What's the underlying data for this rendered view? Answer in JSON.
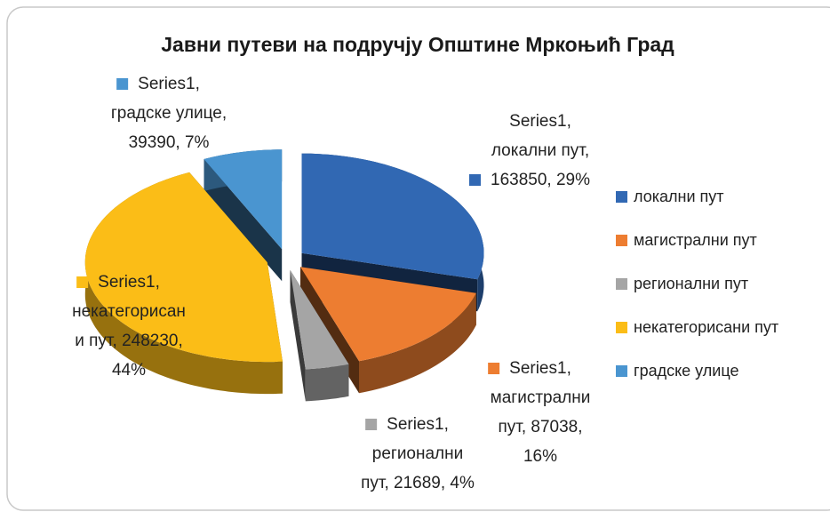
{
  "chart_data": {
    "type": "pie",
    "title": "Јавни путеви на подручју Општине Мркоњић Град",
    "categories": [
      "локални пут",
      "магистрални пут",
      "регионални пут",
      "некатегорисани пут",
      "градске улице"
    ],
    "values": [
      163850,
      87038,
      21689,
      248230,
      39390
    ],
    "colors": [
      "#3168b3",
      "#ed7d31",
      "#a5a5a5",
      "#fbbd17",
      "#4a95d0"
    ],
    "value_labels": [
      [
        "Series1,",
        "локални пут,",
        "163850, 29%"
      ],
      [
        "Series1,",
        "магистрални",
        "пут, 87038,",
        "16%"
      ],
      [
        "Series1,",
        "регионални",
        "пут, 21689, 4%"
      ],
      [
        "Series1,",
        "некатегорисан",
        "и пут, 248230,",
        "44%"
      ],
      [
        "Series1,",
        "градске улице,",
        "39390, 7%"
      ]
    ]
  }
}
